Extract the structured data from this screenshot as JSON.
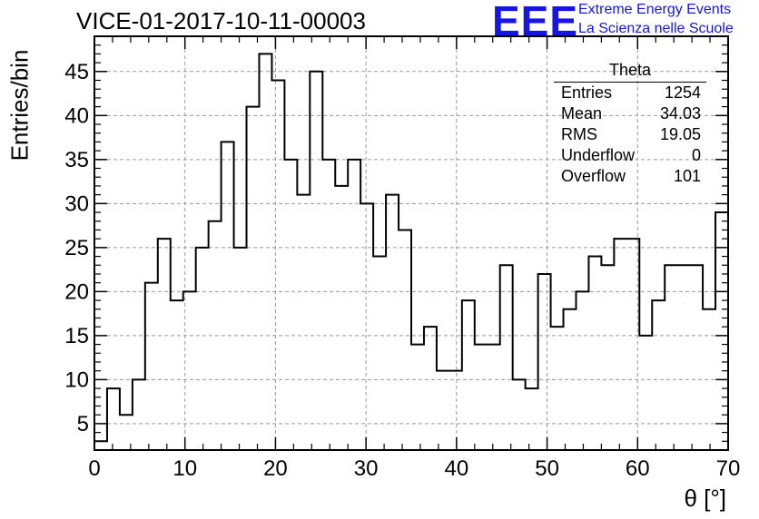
{
  "chart_data": {
    "type": "bar",
    "title": "VICE-01-2017-10-11-00003",
    "xlabel": "θ [°]",
    "ylabel": "Entries/bin",
    "xlim": [
      0,
      70
    ],
    "ylim": [
      2,
      49
    ],
    "x_ticks": [
      0,
      10,
      20,
      30,
      40,
      50,
      60,
      70
    ],
    "y_ticks": [
      5,
      10,
      15,
      20,
      25,
      30,
      35,
      40,
      45
    ],
    "grid": true,
    "bin_width": 1.4,
    "values": [
      3,
      9,
      6,
      10,
      21,
      26,
      19,
      20,
      25,
      28,
      37,
      25,
      41,
      47,
      44,
      35,
      31,
      45,
      35,
      32,
      35,
      30,
      24,
      31,
      27,
      14,
      16,
      11,
      11,
      19,
      14,
      14,
      23,
      10,
      9,
      22,
      16,
      18,
      20,
      24,
      23,
      26,
      26,
      15,
      19,
      23,
      23,
      23,
      18,
      29
    ],
    "stats": {
      "name": "Theta",
      "rows": [
        {
          "label": "Entries",
          "value": "1254"
        },
        {
          "label": "Mean",
          "value": "34.03"
        },
        {
          "label": "RMS",
          "value": "19.05"
        },
        {
          "label": "Underflow",
          "value": "0"
        },
        {
          "label": "Overflow",
          "value": "101"
        }
      ]
    }
  },
  "logo": {
    "mark": "EEE",
    "line1": "Extreme Energy Events",
    "line2": "La Scienza nelle Scuole"
  },
  "colors": {
    "line": "#000000",
    "grid": "#9a9a9a",
    "logo": "#1515e6"
  }
}
